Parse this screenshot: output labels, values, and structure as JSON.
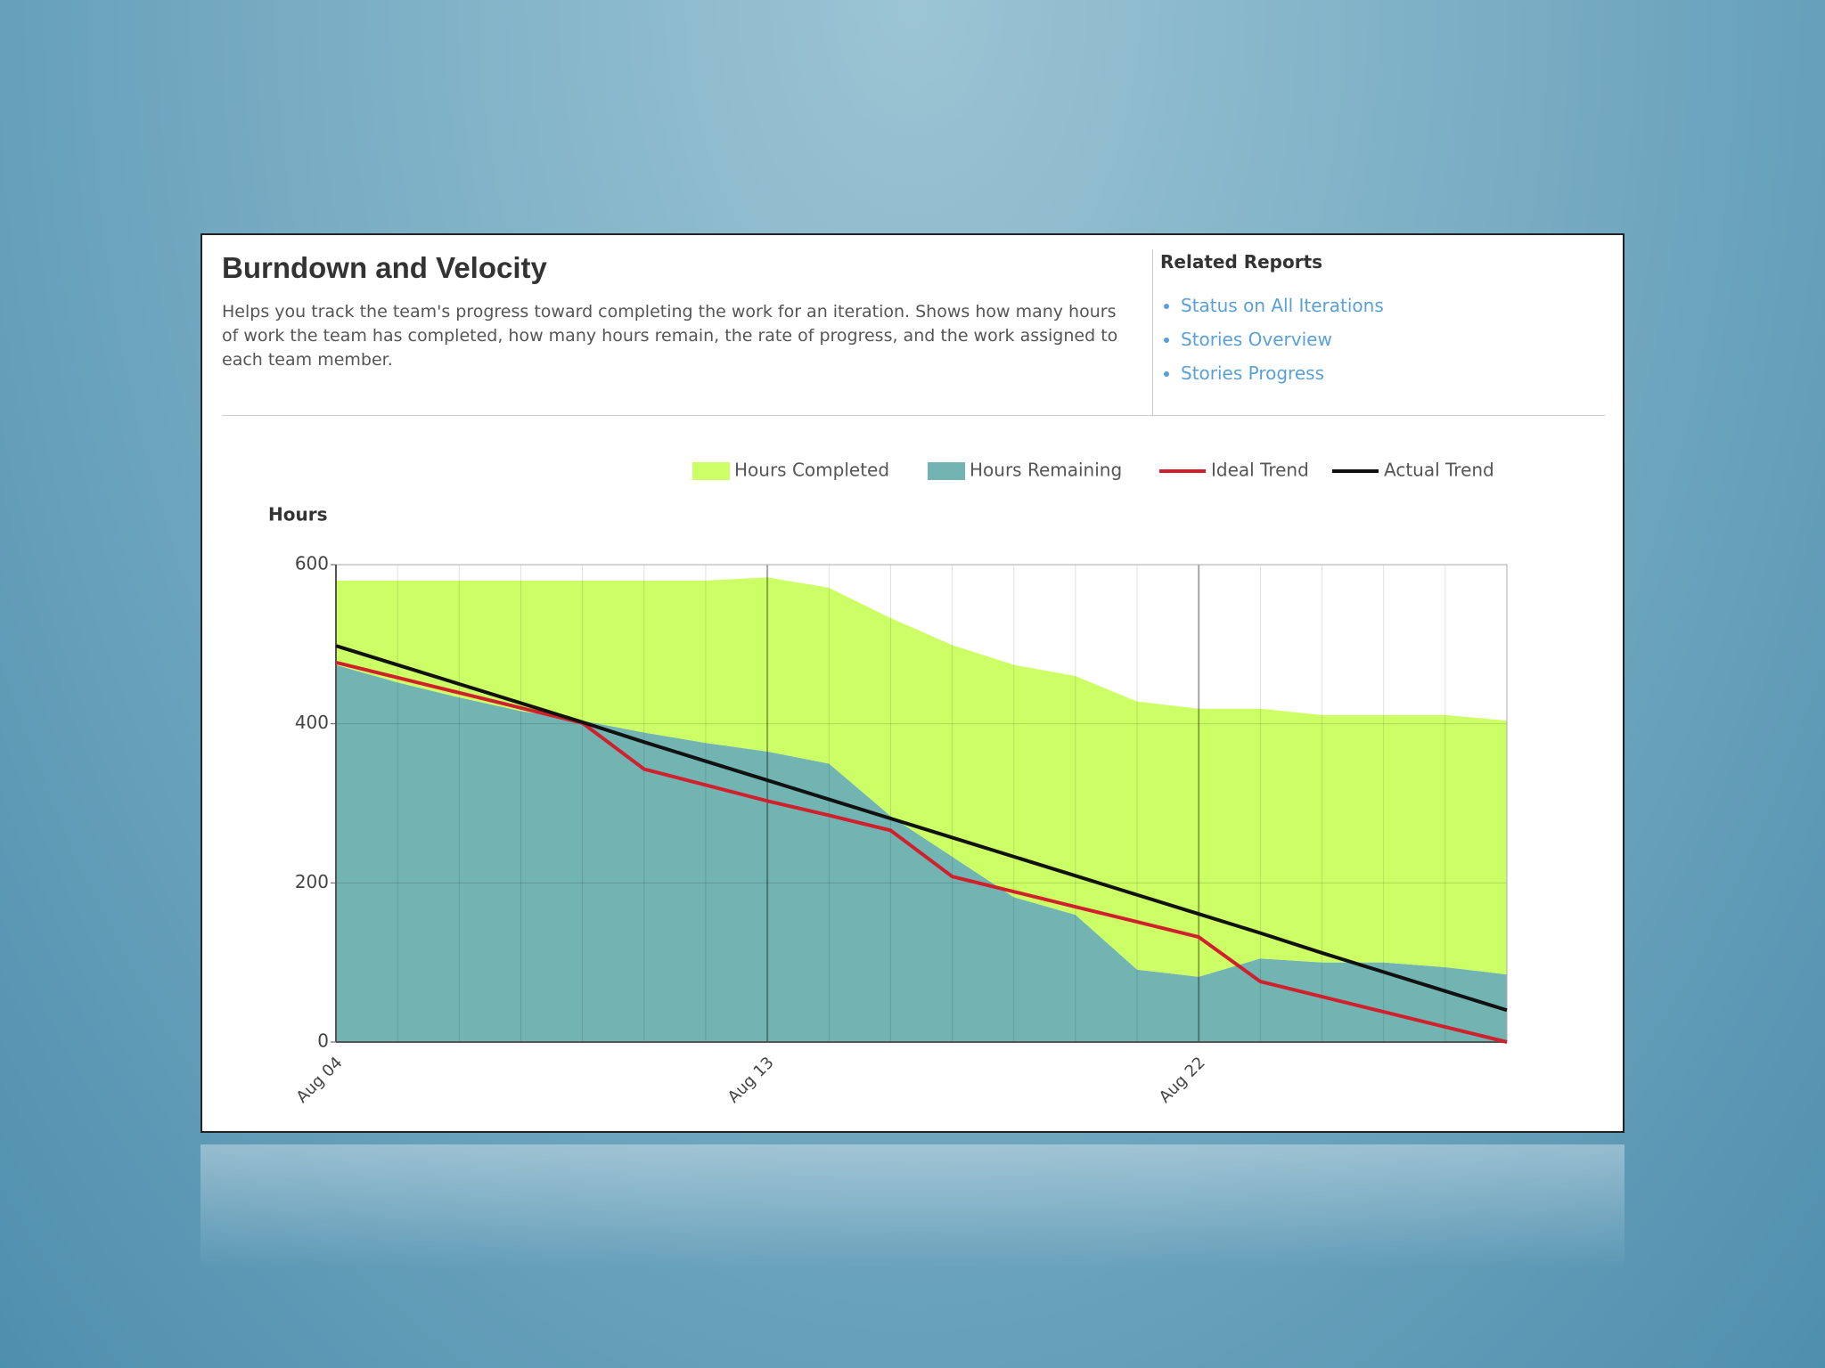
{
  "header": {
    "title": "Burndown and Velocity",
    "description": "Helps you track the team's progress toward completing the work for an iteration. Shows how many hours of work the team has completed, how many hours remain, the rate of progress, and the work assigned to each team member.",
    "related_title": "Related Reports",
    "related_links": [
      "Status on All Iterations",
      "Stories Overview",
      "Stories Progress"
    ]
  },
  "chart_data": {
    "type": "area",
    "stacked": true,
    "y_label": "Hours",
    "categories": [
      "Aug 04",
      null,
      null,
      null,
      null,
      null,
      null,
      "Aug 13",
      null,
      null,
      null,
      null,
      null,
      null,
      "Aug 22",
      null,
      null,
      null,
      null,
      null
    ],
    "series": [
      {
        "name": "Hours Completed",
        "type": "area",
        "color": "#ccff66",
        "values": [
          106,
          128,
          147,
          164,
          176,
          191,
          204,
          219,
          221,
          249,
          266,
          292,
          300,
          337,
          337,
          314,
          311,
          311,
          317,
          319
        ]
      },
      {
        "name": "Hours Remaining",
        "type": "area",
        "color": "#72b4b2",
        "values": [
          474,
          452,
          433,
          416,
          404,
          389,
          376,
          365,
          350,
          284,
          233,
          182,
          160,
          91,
          82,
          105,
          100,
          100,
          94,
          85
        ]
      },
      {
        "name": "Ideal Trend",
        "type": "line",
        "color": "#d0202c",
        "values": [
          477,
          458,
          439,
          420,
          401,
          343,
          323,
          303,
          285,
          266,
          208,
          189,
          170,
          151,
          132,
          76,
          57,
          38,
          19,
          0
        ]
      },
      {
        "name": "Actual Trend",
        "type": "line",
        "color": "#111111",
        "values": [
          498,
          474,
          450,
          426,
          402,
          377,
          353,
          329,
          305,
          281,
          257,
          233,
          209,
          185,
          161,
          137,
          112,
          88,
          64,
          40
        ]
      }
    ],
    "ylim": [
      0,
      600
    ],
    "yticks": [
      0,
      200,
      400,
      600
    ],
    "grid": true,
    "legend": "top"
  }
}
